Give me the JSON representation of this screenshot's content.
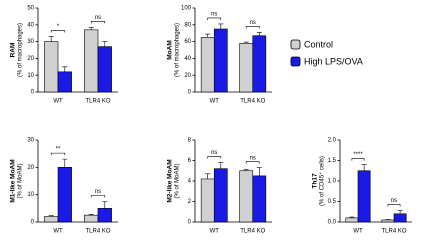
{
  "chart_data": [
    {
      "type": "bar",
      "ylabel": "RAM",
      "ylabel_sub": "(% of macrophages)",
      "categories": [
        "WT",
        "TLR4  KO"
      ],
      "series": [
        {
          "name": "Control",
          "color": "#d0d0d0",
          "values": [
            30,
            37
          ],
          "errors": [
            3,
            1.5
          ]
        },
        {
          "name": "High LPS/OVA",
          "color": "#1a1ae6",
          "values": [
            12,
            27
          ],
          "errors": [
            3,
            3
          ]
        }
      ],
      "annotations": [
        "*",
        "ns"
      ],
      "ylim": [
        0,
        50
      ],
      "yticks": [
        0,
        10,
        20,
        30,
        40,
        50
      ]
    },
    {
      "type": "bar",
      "ylabel": "MoAM",
      "ylabel_sub": "(% of macrophages)",
      "categories": [
        "WT",
        "TLR4  KO"
      ],
      "series": [
        {
          "name": "Control",
          "color": "#d0d0d0",
          "values": [
            65,
            58
          ],
          "errors": [
            4,
            1.5
          ]
        },
        {
          "name": "High LPS/OVA",
          "color": "#1a1ae6",
          "values": [
            75,
            67
          ],
          "errors": [
            6,
            4
          ]
        }
      ],
      "annotations": [
        "ns",
        "ns"
      ],
      "ylim": [
        0,
        100
      ],
      "yticks": [
        0,
        20,
        40,
        60,
        80,
        100
      ]
    },
    {
      "type": "bar",
      "ylabel": "M1-like MoAM",
      "ylabel_sub": "(% of MoAM)",
      "categories": [
        "WT",
        "TLR4  KO"
      ],
      "series": [
        {
          "name": "Control",
          "color": "#d0d0d0",
          "values": [
            2,
            2.5
          ],
          "errors": [
            0.3,
            0.3
          ]
        },
        {
          "name": "High LPS/OVA",
          "color": "#1a1ae6",
          "values": [
            20,
            5
          ],
          "errors": [
            3,
            2.5
          ]
        }
      ],
      "annotations": [
        "**",
        "ns"
      ],
      "ylim": [
        0,
        30
      ],
      "yticks": [
        0,
        10,
        20,
        30
      ]
    },
    {
      "type": "bar",
      "ylabel": "M2-like MoAM",
      "ylabel_sub": "(% of MoAM)",
      "categories": [
        "WT",
        "TLR4  KO"
      ],
      "series": [
        {
          "name": "Control",
          "color": "#d0d0d0",
          "values": [
            4.2,
            5
          ],
          "errors": [
            0.5,
            0.1
          ]
        },
        {
          "name": "High LPS/OVA",
          "color": "#1a1ae6",
          "values": [
            5.2,
            4.5
          ],
          "errors": [
            0.6,
            0.8
          ]
        }
      ],
      "annotations": [
        "ns",
        "ns"
      ],
      "ylim": [
        0,
        8
      ],
      "yticks": [
        0,
        2,
        4,
        6,
        8
      ]
    },
    {
      "type": "bar",
      "ylabel": "Th17",
      "ylabel_sub": "(% of CD45⁺ cells)",
      "categories": [
        "WT",
        "TLR4  KO"
      ],
      "series": [
        {
          "name": "Control",
          "color": "#d0d0d0",
          "values": [
            0.1,
            0.05
          ],
          "errors": [
            0.02,
            0.01
          ]
        },
        {
          "name": "High LPS/OVA",
          "color": "#1a1ae6",
          "values": [
            1.25,
            0.2
          ],
          "errors": [
            0.15,
            0.08
          ]
        }
      ],
      "annotations": [
        "****",
        "ns"
      ],
      "ylim": [
        0,
        2
      ],
      "yticks": [
        {
          "value": 0,
          "label": "0.0"
        },
        0.5,
        {
          "value": 1,
          "label": "1.0"
        },
        1.5,
        {
          "value": 2,
          "label": "2.0"
        }
      ]
    }
  ]
}
